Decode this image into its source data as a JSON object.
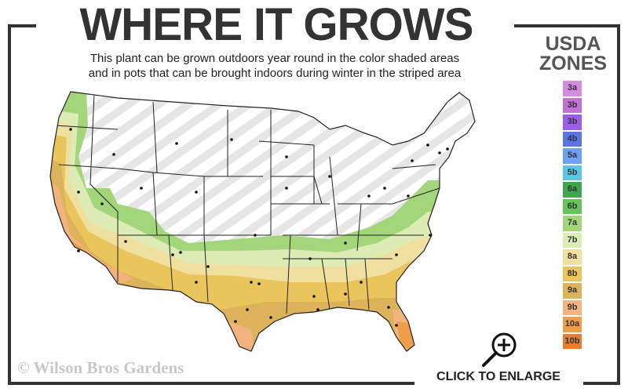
{
  "header": {
    "title": "WHERE IT GROWS",
    "subtitle_line1": "This plant can be grown outdoors year round in the color shaded areas",
    "subtitle_line2": "and in pots that can be brought indoors during winter in the striped area"
  },
  "legend": {
    "title_line1": "USDA",
    "title_line2": "ZONES",
    "zones": [
      {
        "label": "3a",
        "color": "#d58be0"
      },
      {
        "label": "3b",
        "color": "#c271d6"
      },
      {
        "label": "3b",
        "color": "#9b5ee8"
      },
      {
        "label": "4b",
        "color": "#5a73e6"
      },
      {
        "label": "5a",
        "color": "#6fa0f5"
      },
      {
        "label": "5b",
        "color": "#5ec6e0"
      },
      {
        "label": "6a",
        "color": "#3ea64e"
      },
      {
        "label": "6b",
        "color": "#66c45c"
      },
      {
        "label": "7a",
        "color": "#a3d67a"
      },
      {
        "label": "7b",
        "color": "#dcecb4"
      },
      {
        "label": "8a",
        "color": "#f0e0a0"
      },
      {
        "label": "8b",
        "color": "#e9c55c"
      },
      {
        "label": "9a",
        "color": "#dcb25a"
      },
      {
        "label": "9b",
        "color": "#f2b37e"
      },
      {
        "label": "10a",
        "color": "#ee9d48"
      },
      {
        "label": "10b",
        "color": "#e57d33"
      }
    ]
  },
  "map": {
    "striped_area_color": "#e6e6e6",
    "state_line_color": "#222222"
  },
  "watermark": "© Wilson Bros Gardens",
  "enlarge": {
    "label": "CLICK TO ENLARGE",
    "icon": "zoom-in-magnifier-icon"
  }
}
